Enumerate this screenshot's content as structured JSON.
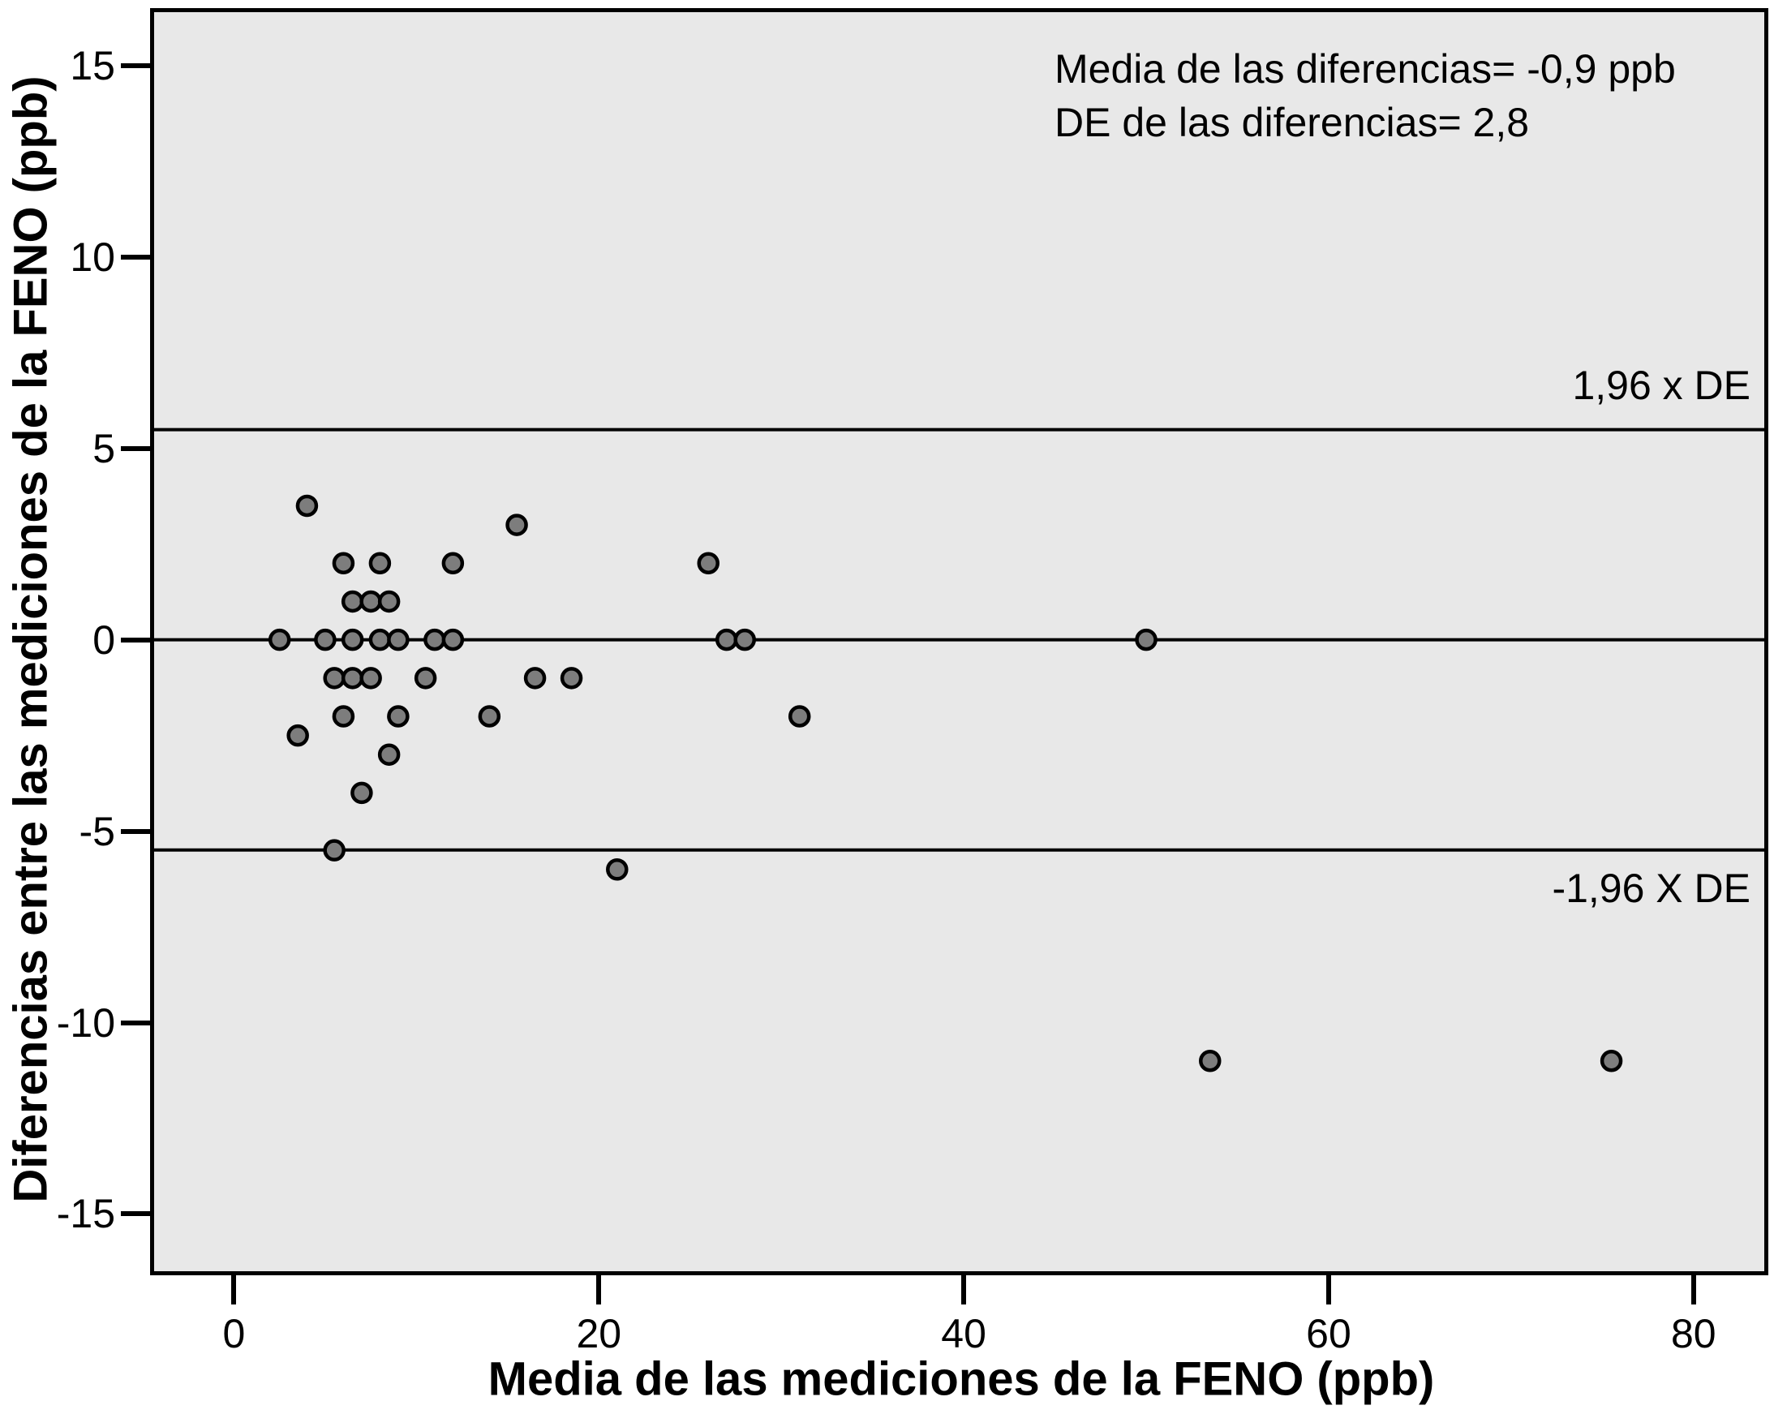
{
  "chart_data": {
    "type": "scatter",
    "title": "",
    "xlabel": "Media de las mediciones de la FENO (ppb)",
    "ylabel": "Diferencias entre las mediciones de la FENO (ppb)",
    "xlim": [
      -4.6,
      84.1
    ],
    "ylim": [
      -16.6,
      16.5
    ],
    "x_ticks": [
      0,
      20,
      40,
      60,
      80
    ],
    "y_ticks": [
      15,
      10,
      5,
      0,
      -5,
      -10,
      -15
    ],
    "grid": false,
    "legend": null,
    "annotations": {
      "mean_line_text": "Media de las diferencias= -0,9 ppb",
      "sd_line_text": "DE de las diferencias= 2,8",
      "upper_loa_label": "1,96 x DE",
      "lower_loa_label": "-1,96 X DE"
    },
    "reference_lines": [
      {
        "name": "upper-loa-line",
        "y": 5.49
      },
      {
        "name": "zero-line",
        "y": 0
      },
      {
        "name": "lower-loa-line",
        "y": -5.49
      }
    ],
    "points": [
      [
        4,
        3.5
      ],
      [
        15.5,
        3
      ],
      [
        6,
        2
      ],
      [
        8,
        2
      ],
      [
        12,
        2
      ],
      [
        26,
        2
      ],
      [
        6.5,
        1
      ],
      [
        7.5,
        1
      ],
      [
        8.5,
        1
      ],
      [
        2.5,
        0
      ],
      [
        5,
        0
      ],
      [
        6.5,
        0
      ],
      [
        8,
        0
      ],
      [
        9,
        0
      ],
      [
        11,
        0
      ],
      [
        12,
        0
      ],
      [
        27,
        0
      ],
      [
        28,
        0
      ],
      [
        50,
        0
      ],
      [
        5.5,
        -1
      ],
      [
        6.5,
        -1
      ],
      [
        7.5,
        -1
      ],
      [
        10.5,
        -1
      ],
      [
        16.5,
        -1
      ],
      [
        18.5,
        -1
      ],
      [
        6,
        -2
      ],
      [
        9,
        -2
      ],
      [
        14,
        -2
      ],
      [
        31,
        -2
      ],
      [
        3.5,
        -2.5
      ],
      [
        8.5,
        -3
      ],
      [
        7,
        -4
      ],
      [
        5.5,
        -5.5
      ],
      [
        21,
        -6
      ],
      [
        53.5,
        -11
      ],
      [
        75.5,
        -11
      ]
    ]
  },
  "styles": {
    "plot_background": "#e8e8e8",
    "page_background": "#ffffff",
    "line_color": "#000000",
    "point_fill": "#7d7d7d",
    "point_stroke": "#000000"
  }
}
